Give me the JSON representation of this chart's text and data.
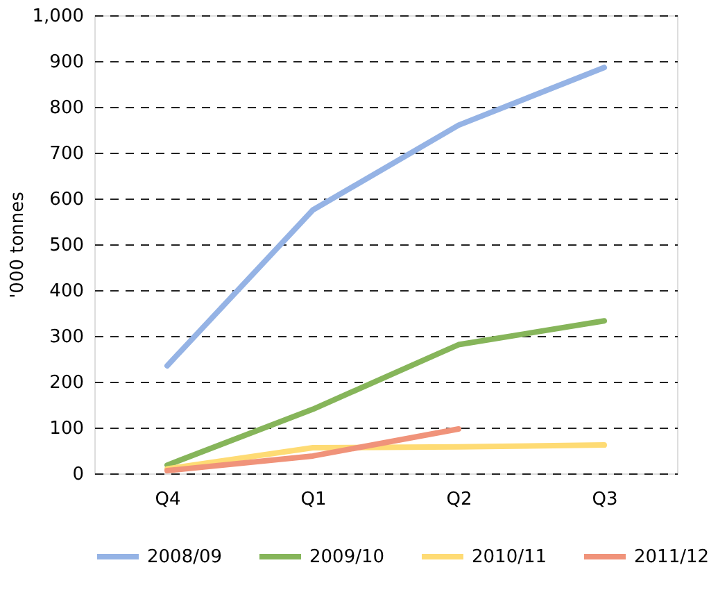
{
  "chart_data": {
    "type": "line",
    "ylabel": "'000 tonnes",
    "categories": [
      "Q4",
      "Q1",
      "Q2",
      "Q3"
    ],
    "series": [
      {
        "name": "2008/09",
        "color": "#95b3e5",
        "values": [
          235,
          575,
          760,
          886
        ]
      },
      {
        "name": "2009/10",
        "color": "#86b55a",
        "values": [
          18,
          140,
          281,
          333
        ]
      },
      {
        "name": "2010/11",
        "color": "#fedb74",
        "values": [
          10,
          56,
          58,
          62
        ]
      },
      {
        "name": "2011/12",
        "color": "#f0937a",
        "values": [
          6,
          38,
          97,
          null
        ]
      }
    ],
    "ylim": [
      0,
      1000
    ],
    "yticks": [
      0,
      100,
      200,
      300,
      400,
      500,
      600,
      700,
      800,
      900,
      {
        "value": 1000,
        "label": "1,000"
      }
    ],
    "grid": "y",
    "legend": "bottom",
    "marker": "none",
    "line_style": "solid"
  }
}
